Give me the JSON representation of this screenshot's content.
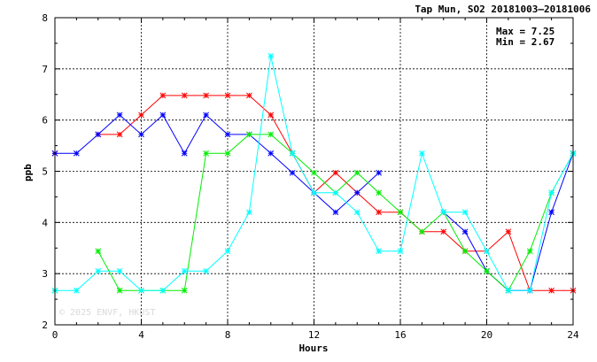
{
  "chart_data": {
    "type": "line",
    "title": "Tap Mun, SO2 20181003—20181006",
    "xlabel": "Hours",
    "ylabel": "ppb",
    "xlim": [
      0,
      24
    ],
    "ylim": [
      2,
      8
    ],
    "xticks": [
      0,
      4,
      8,
      12,
      16,
      20,
      24
    ],
    "yticks": [
      2,
      3,
      4,
      5,
      6,
      7,
      8
    ],
    "grid": true,
    "stats": {
      "max_label": "Max = 7.25",
      "min_label": "Min = 2.67"
    },
    "watermark": "© 2025 ENVF, HKUST",
    "x": [
      0,
      1,
      2,
      3,
      4,
      5,
      6,
      7,
      8,
      9,
      10,
      11,
      12,
      13,
      14,
      15,
      16,
      17,
      18,
      19,
      20,
      21,
      22,
      23,
      24
    ],
    "series": [
      {
        "color": "#ff0000",
        "values": [
          5.35,
          null,
          5.72,
          5.72,
          6.1,
          6.48,
          6.48,
          6.48,
          6.48,
          6.48,
          6.1,
          5.35,
          4.58,
          4.97,
          4.58,
          4.2,
          4.2,
          3.82,
          3.82,
          3.44,
          3.44,
          3.82,
          2.67,
          2.67,
          2.67
        ]
      },
      {
        "color": "#0000ff",
        "values": [
          5.35,
          5.35,
          5.72,
          6.1,
          5.72,
          6.1,
          5.35,
          6.1,
          5.72,
          5.72,
          5.35,
          4.97,
          4.58,
          4.2,
          4.58,
          4.97,
          null,
          null,
          4.2,
          3.82,
          3.05,
          2.67,
          2.67,
          4.2,
          5.35
        ]
      },
      {
        "color": "#00ee00",
        "values": [
          2.67,
          null,
          3.44,
          2.67,
          2.67,
          2.67,
          2.67,
          5.35,
          5.35,
          5.72,
          5.72,
          5.35,
          4.97,
          4.58,
          4.97,
          4.58,
          4.2,
          3.82,
          4.2,
          3.44,
          3.05,
          2.67,
          3.44,
          4.58,
          5.35
        ]
      },
      {
        "color": "#00ffff",
        "values": [
          2.67,
          2.67,
          3.05,
          3.05,
          2.67,
          2.67,
          3.05,
          3.05,
          3.44,
          4.2,
          7.25,
          5.35,
          4.58,
          4.58,
          4.2,
          3.44,
          3.44,
          5.35,
          4.2,
          4.2,
          3.44,
          2.67,
          2.67,
          4.58,
          5.35
        ]
      }
    ]
  }
}
